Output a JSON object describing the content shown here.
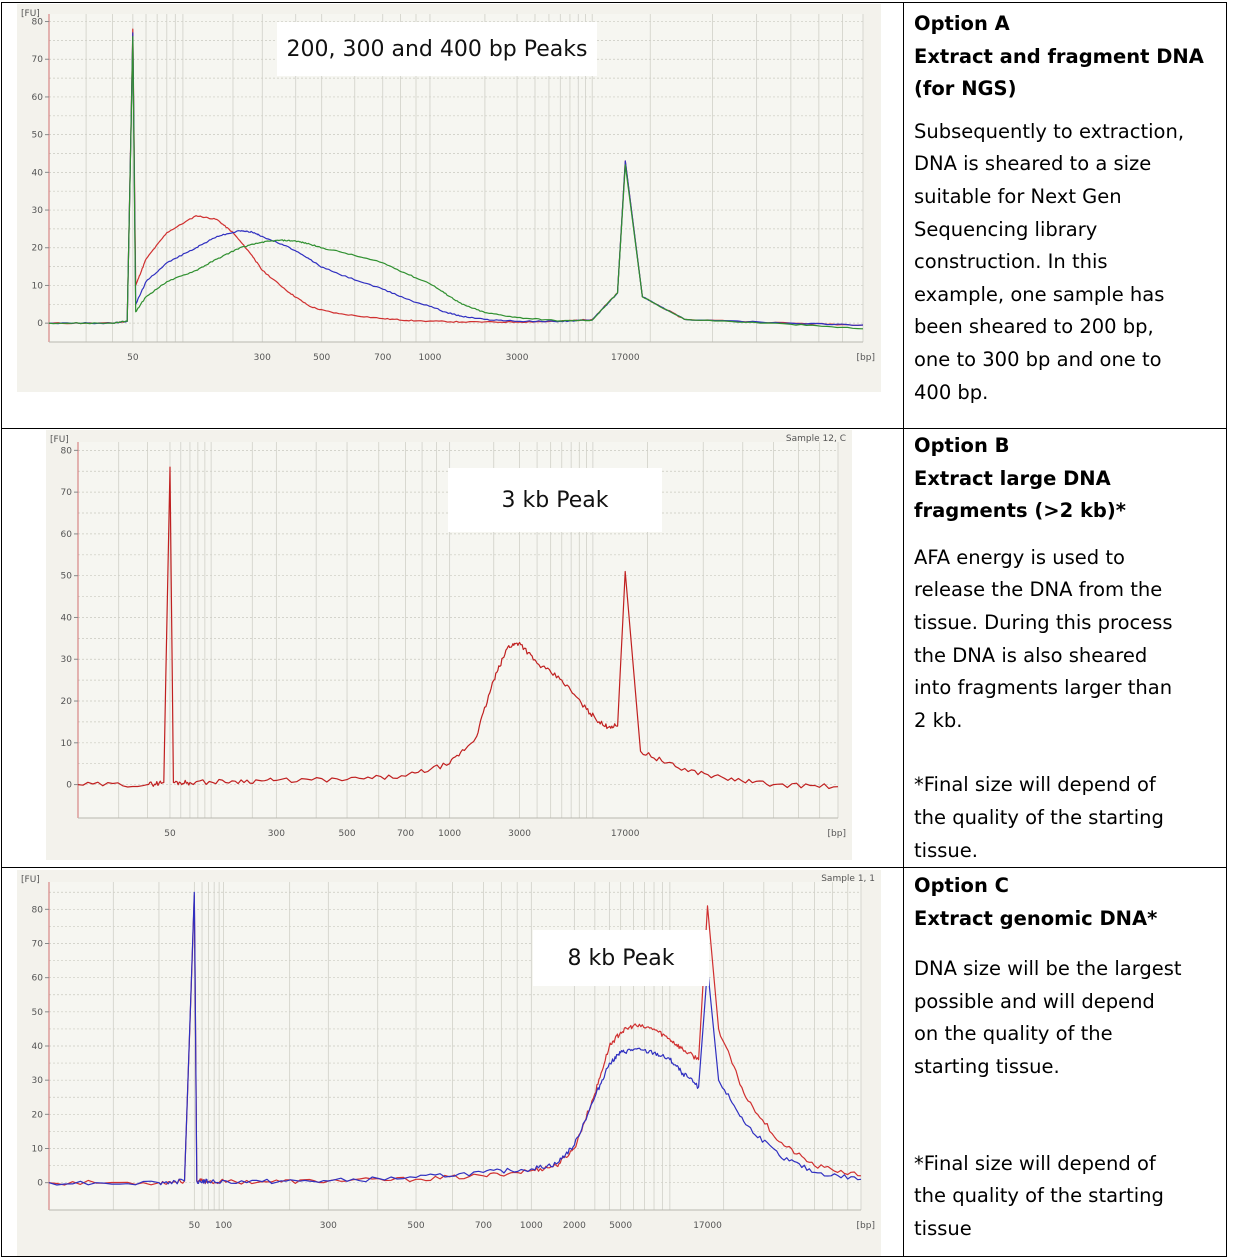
{
  "rows": [
    {
      "id": "A",
      "heading": [
        "Option A",
        "Extract and fragment DNA",
        "(for NGS)"
      ],
      "body": [
        "Subsequently to extraction,",
        "DNA is sheared to a size",
        "suitable for Next Gen",
        "Sequencing library",
        "construction.  In this",
        "example, one sample has",
        "been sheared to 200 bp,",
        "one to 300 bp and one to",
        "400 bp."
      ],
      "note": []
    },
    {
      "id": "B",
      "heading": [
        "Option B",
        "Extract large DNA",
        "fragments (>2 kb)*"
      ],
      "body": [
        "AFA energy is used to",
        "release the DNA from the",
        "tissue.  During this process",
        "the DNA is also sheared",
        "into fragments larger than",
        "2 kb."
      ],
      "note": [
        "*Final size will depend of",
        "the quality of the starting",
        "tissue."
      ]
    },
    {
      "id": "C",
      "heading": [
        "Option C",
        "Extract genomic DNA*"
      ],
      "body": [
        "DNA size will be the largest",
        "possible and will depend",
        "on the quality of the",
        "starting tissue."
      ],
      "note": [
        "*Final size will depend of",
        "the quality of the starting",
        "tissue"
      ]
    }
  ],
  "chart_data": [
    {
      "type": "line",
      "title": "200, 300 and 400 bp Peaks",
      "corner_label": "",
      "ylabel": "[FU]",
      "xlabel": "[bp]",
      "ylim": [
        -5,
        82
      ],
      "yticks": [
        0,
        10,
        20,
        30,
        40,
        50,
        60,
        70,
        80
      ],
      "xtick_labels": [
        "50",
        "300",
        "500",
        "700",
        "1000",
        "3000",
        "17000"
      ],
      "x_scale": "log (ladder-calibrated)",
      "series": [
        {
          "color": "#d03030",
          "x": [
            20,
            40,
            47,
            50,
            52,
            60,
            80,
            120,
            160,
            200,
            260,
            300,
            380,
            450,
            550,
            700,
            900,
            1500,
            3000,
            6000,
            10000,
            15000,
            17000,
            19000,
            25000,
            50000,
            80000
          ],
          "y": [
            0,
            0,
            0.5,
            78,
            10,
            17,
            24,
            28.5,
            27.5,
            24,
            18,
            14,
            8,
            4.5,
            2.5,
            1.2,
            0.6,
            0.3,
            0.3,
            0.5,
            1,
            8,
            43,
            7,
            1,
            0,
            -0.5
          ]
        },
        {
          "color": "#3030c0",
          "x": [
            20,
            40,
            47,
            50,
            52,
            60,
            80,
            120,
            160,
            220,
            260,
            300,
            380,
            450,
            550,
            700,
            900,
            1200,
            1500,
            2000,
            3000,
            6000,
            10000,
            15000,
            17000,
            19000,
            25000,
            50000,
            80000
          ],
          "y": [
            0,
            0,
            0.5,
            77,
            5,
            11,
            16,
            20,
            23,
            24.5,
            24.2,
            23,
            20,
            17,
            13,
            9,
            5.5,
            3,
            1.8,
            1,
            0.5,
            0.5,
            0.8,
            8,
            43,
            7,
            1,
            0,
            -0.5
          ]
        },
        {
          "color": "#309030",
          "x": [
            20,
            40,
            47,
            50,
            52,
            60,
            80,
            120,
            160,
            220,
            300,
            350,
            400,
            450,
            550,
            700,
            900,
            1200,
            1500,
            2000,
            3000,
            6000,
            10000,
            15000,
            17000,
            19000,
            25000,
            50000,
            80000
          ],
          "y": [
            0,
            0,
            0.5,
            76,
            3,
            7,
            11,
            14,
            17,
            20,
            21.5,
            22,
            21.8,
            21,
            19,
            16,
            12,
            8,
            5,
            2.8,
            1.5,
            0.6,
            0.8,
            8,
            42,
            7,
            1,
            -0.3,
            -1.5
          ]
        }
      ]
    },
    {
      "type": "line",
      "title": "3 kb Peak",
      "corner_label": "Sample 12, C",
      "ylabel": "[FU]",
      "xlabel": "[bp]",
      "ylim": [
        -8,
        82
      ],
      "yticks": [
        0,
        10,
        20,
        30,
        40,
        50,
        60,
        70,
        80
      ],
      "xtick_labels": [
        "50",
        "300",
        "500",
        "700",
        "1000",
        "3000",
        "17000"
      ],
      "x_scale": "log (ladder-calibrated)",
      "series": [
        {
          "color": "#c02020",
          "x": [
            20,
            40,
            47,
            50,
            53,
            70,
            150,
            300,
            500,
            700,
            1000,
            1500,
            2000,
            2500,
            3000,
            4000,
            6000,
            9000,
            12000,
            15000,
            17000,
            19000,
            25000,
            35000,
            50000,
            80000
          ],
          "y": [
            0,
            0,
            0.5,
            76,
            0.5,
            0.5,
            0.8,
            1,
            1.2,
            2,
            5,
            11,
            25,
            33,
            34,
            29,
            25,
            18,
            14,
            14,
            51,
            8,
            4,
            1.5,
            0,
            -0.5
          ]
        }
      ]
    },
    {
      "type": "line",
      "title": "8 kb Peak",
      "corner_label": "Sample 1, 1",
      "ylabel": "[FU]",
      "xlabel": "[bp]",
      "ylim": [
        -8,
        88
      ],
      "yticks": [
        0,
        10,
        20,
        30,
        40,
        50,
        60,
        70,
        80
      ],
      "xtick_labels": [
        "50",
        "100",
        "300",
        "500",
        "700",
        "1000",
        "2000",
        "5000",
        "17000"
      ],
      "x_scale": "log (ladder-calibrated)",
      "series": [
        {
          "color": "#d03030",
          "x": [
            20,
            40,
            47,
            50,
            53,
            70,
            150,
            300,
            500,
            700,
            1000,
            1500,
            2000,
            3000,
            4000,
            5000,
            6000,
            8000,
            10000,
            12000,
            15000,
            17000,
            19000,
            25000,
            35000,
            50000,
            80000
          ],
          "y": [
            0,
            0,
            0.5,
            84,
            0.5,
            0.3,
            0.3,
            0.5,
            1,
            2,
            3.5,
            5,
            10,
            26,
            40,
            44,
            46,
            45,
            42,
            39,
            36,
            81,
            45,
            25,
            12,
            5,
            2
          ]
        },
        {
          "color": "#3030c0",
          "x": [
            20,
            40,
            47,
            50,
            53,
            70,
            150,
            300,
            500,
            700,
            1000,
            1500,
            2000,
            3000,
            4000,
            5000,
            6000,
            8000,
            10000,
            12000,
            15000,
            17000,
            19000,
            25000,
            35000,
            50000,
            80000
          ],
          "y": [
            0,
            0,
            0.5,
            85,
            0.5,
            0.3,
            0.3,
            0.5,
            1.5,
            3,
            4,
            5.5,
            11,
            25,
            35,
            38,
            39,
            38,
            36,
            32,
            28,
            63,
            30,
            17,
            8,
            3,
            1
          ]
        }
      ]
    }
  ]
}
